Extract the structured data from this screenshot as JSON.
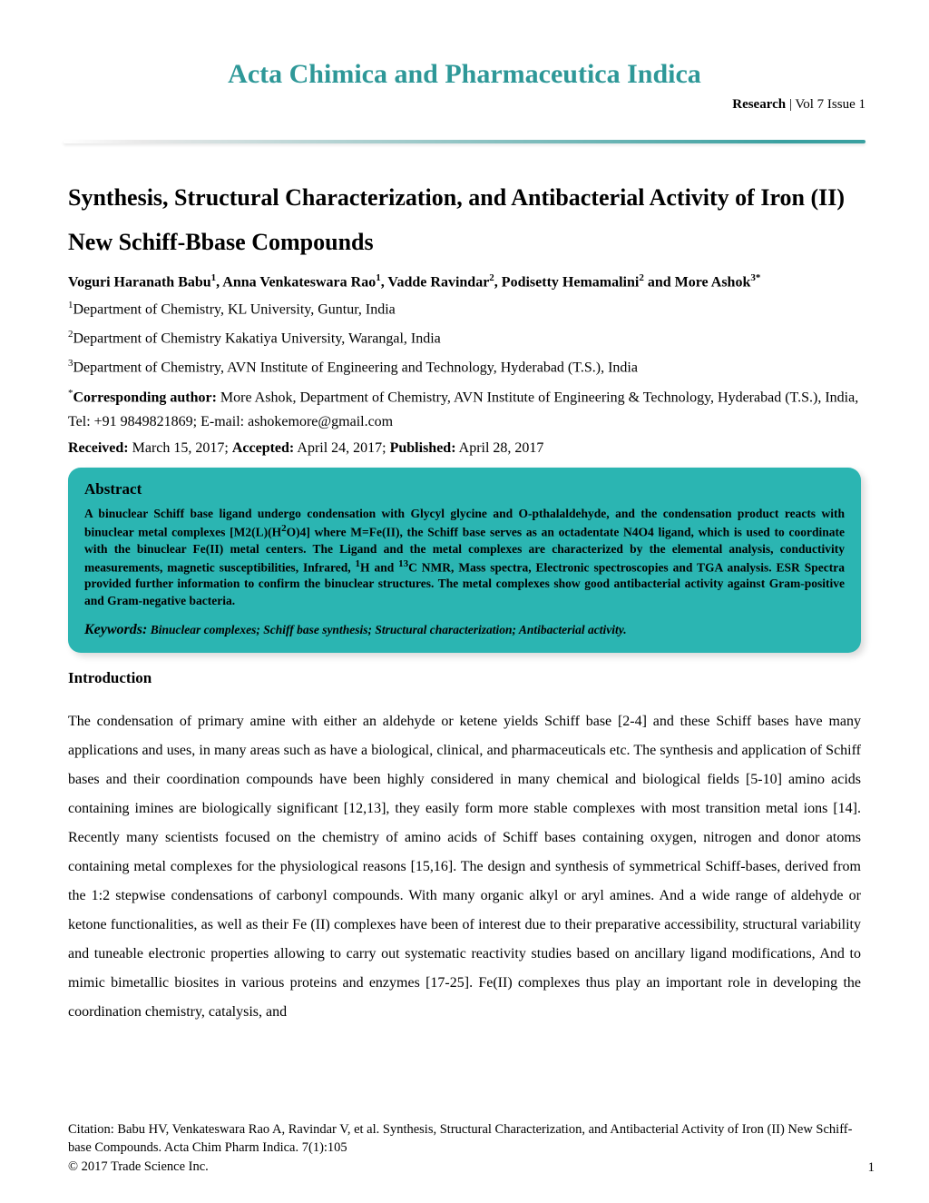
{
  "journal": {
    "name": "Acta Chimica and Pharmaceutica Indica",
    "section_label": "Research",
    "issue": "Vol 7 Issue 1",
    "title_color": "#2e9898",
    "separator_gradient_start": "#e8e8e8",
    "separator_gradient_end": "#3aa0a0"
  },
  "paper": {
    "title": "Synthesis, Structural Characterization, and Antibacterial Activity of Iron (II) New Schiff-Bbase Compounds",
    "authors_html": "Voguri Haranath Babu<span class=\"sup\">1</span>, Anna Venkateswara Rao<span class=\"sup\">1</span>, Vadde Ravindar<span class=\"sup\">2</span>, Podisetty Hemamalini<span class=\"sup\">2</span> and More Ashok<span class=\"sup\">3*</span>",
    "affiliations": [
      {
        "idx": "1",
        "text": "Department of Chemistry, KL University, Guntur, India"
      },
      {
        "idx": "2",
        "text": "Department of Chemistry Kakatiya University, Warangal, India"
      },
      {
        "idx": "3",
        "text": "Department of Chemistry, AVN Institute of Engineering and Technology, Hyderabad (T.S.), India"
      }
    ],
    "corresponding_label": "Corresponding author:",
    "corresponding_text": " More Ashok, Department of Chemistry, AVN Institute of Engineering & Technology, Hyderabad (T.S.), India, Tel: +91 9849821869; E-mail: ashokemore@gmail.com",
    "received_label": "Received:",
    "received": " March 15, 2017; ",
    "accepted_label": "Accepted:",
    "accepted": " April 24, 2017; ",
    "published_label": "Published:",
    "published": " April 28, 2017"
  },
  "abstract": {
    "heading": "Abstract",
    "box_bg": "#2bb5b2",
    "text_html": "A binuclear Schiff base ligand undergo condensation with Glycyl glycine and O-pthalaldehyde, and the condensation product reacts with binuclear metal complexes [M2(L)(H<span class=\"sup\">2</span>O)4] where M=Fe(II), the Schiff base serves as an octadentate N4O4 ligand, which is used to coordinate with the binuclear Fe(II) metal centers. The Ligand and the metal complexes are characterized by the elemental analysis, conductivity measurements, magnetic susceptibilities, Infrared, <span class=\"sup\">1</span>H and <span class=\"sup\">13</span>C NMR, Mass spectra, Electronic spectroscopies and TGA analysis. ESR Spectra provided further information to confirm the binuclear structures. The metal complexes show good antibacterial activity against Gram-positive and Gram-negative bacteria.",
    "keywords_label": "Keywords:",
    "keywords": " Binuclear complexes; Schiff base synthesis; Structural characterization; Antibacterial activity."
  },
  "introduction": {
    "heading": "Introduction",
    "body": "The condensation of primary amine with either an aldehyde or ketene yields Schiff base [2-4] and these Schiff bases have many applications and uses, in many areas such as have a biological, clinical, and pharmaceuticals etc. The synthesis and application of Schiff bases and their coordination compounds have been highly considered in many chemical and biological fields [5-10] amino acids containing imines are biologically significant [12,13], they easily form more stable complexes with most transition metal ions [14]. Recently many scientists focused on the chemistry of amino acids of Schiff bases containing oxygen, nitrogen and donor atoms containing metal complexes for the physiological reasons [15,16]. The design and synthesis of symmetrical Schiff-bases, derived from the 1:2 stepwise condensations of carbonyl compounds. With many organic alkyl or aryl amines. And a wide range of aldehyde or ketone functionalities, as well as their Fe (II) complexes have been of interest due to their preparative accessibility, structural variability and tuneable electronic properties allowing to carry out systematic reactivity studies based on ancillary ligand modifications, And to mimic bimetallic biosites in various proteins and enzymes [17-25]. Fe(II) complexes thus play an important role in developing the coordination chemistry, catalysis, and"
  },
  "footer": {
    "citation": "Citation: Babu HV, Venkateswara Rao A, Ravindar V, et al.  Synthesis, Structural Characterization, and Antibacterial Activity of Iron (II) New Schiff-base Compounds.  Acta Chim Pharm Indica. 7(1):105",
    "copyright": "© 2017 Trade Science Inc.",
    "page_number": "1"
  }
}
